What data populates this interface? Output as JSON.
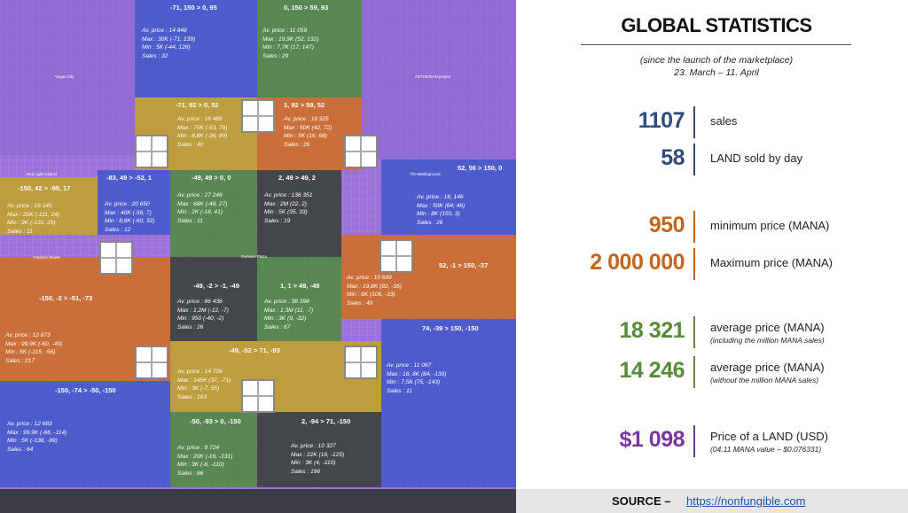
{
  "map": {
    "labels": [
      "Vegas City",
      "Red Light District",
      "Fashion Street",
      "Genesis Plaza",
      "AETHERIAN project",
      "The Battleground"
    ],
    "regions": [
      {
        "title": "-71, 150 > 0, 95",
        "stats": [
          "Av. price : 14 848",
          "Max : 30K (-71, 139)",
          "Min : 5K (-44, 126)",
          "Sales : 32"
        ]
      },
      {
        "title": "0, 150 > 59, 93",
        "stats": [
          "Av. price : 11 059",
          "Max : 19,9K (52, 132)",
          "Min : 7,7K (17, 147)",
          "Sales : 29"
        ]
      },
      {
        "title": "-71, 92 > 0, 52",
        "stats": [
          "Av. price : 16 486",
          "Max : 75K (-53, 79)",
          "Min : 8,8K (-36, 89)",
          "Sales : 40"
        ]
      },
      {
        "title": "1, 92 > 59, 52",
        "stats": [
          "Av. price : 18 325",
          "Max : 50K (42, 72)",
          "Min : 5K (16, 68)",
          "Sales : 26"
        ]
      },
      {
        "title": "-150, 42 > -95, 17",
        "stats": [
          "Av. price : 16 145",
          "Max : 20K (-111, 24)",
          "Min : 9K (-131, 29)",
          "Sales : 11"
        ]
      },
      {
        "title": "-83, 49 > -52, 1",
        "stats": [
          "Av. price : 20 650",
          "Max : 40K (-56, 7)",
          "Min : 8,8K (-60, 32)",
          "Sales : 12"
        ]
      },
      {
        "title": "-49, 49 > 0, 0",
        "stats": [
          "Av. price : 27 246",
          "Max : 68K (-48, 27)",
          "Min : 2K (-18, 41)",
          "Sales : 11"
        ]
      },
      {
        "title": "2, 49 > 49, 2",
        "stats": [
          "Av. price : 136 351",
          "Max : 2M (22, 2)",
          "Min : 5K (35, 33)",
          "Sales : 19"
        ]
      },
      {
        "title": "52, 56 > 150, 0",
        "stats": [
          "Av. price : 16, 146",
          "Max : 50K (64, 46)",
          "Min : 8K (150, 3)",
          "Sales : 26"
        ]
      },
      {
        "title": "-150, -2 > -51, -73",
        "stats": [
          "Av. price : 12 873",
          "Max : 99,9K (-60, -49)",
          "Min : 5K (-115, -56)",
          "Sales : 217"
        ]
      },
      {
        "title": "-49, -2 > -1, -49",
        "stats": [
          "Av. price : 86 436",
          "Max : 1,2M (-12, -7)",
          "Min : 950 (-40, -2)",
          "Sales : 26"
        ]
      },
      {
        "title": "1, 1 > 49, -49",
        "stats": [
          "Av. price : 38 398",
          "Max : 1,3M (11, -7)",
          "Min : 3K (9, -32)",
          "Sales : 67"
        ]
      },
      {
        "title": "52, -1 > 150, -37",
        "stats": [
          "Av. price : 10 699",
          "Max : 19,8K (82, -36)",
          "Min : 6K (106, -33)",
          "Sales : 49"
        ]
      },
      {
        "title": "-49, -52 > 71, -93",
        "stats": [
          "Av. price : 14 706",
          "Max : 145K (37, -71)",
          "Min : 3K (-7, 55)",
          "Sales : 163"
        ]
      },
      {
        "title": "74, -39 > 150, -150",
        "stats": [
          "Av. price : 11 067",
          "Max : 16, 8K (84, -139)",
          "Min : 7,5K (75, -143)",
          "Sales : 11"
        ]
      },
      {
        "title": "-150, -74 > -50, -150",
        "stats": [
          "Av. price : 12 683",
          "Max : 99,9K (-86, -114)",
          "Min : 5K (-138, -99)",
          "Sales : 64"
        ]
      },
      {
        "title": "-50, -93 > 0, -150",
        "stats": [
          "Av. price : 9 724",
          "Max : 20K (-16, -131)",
          "Min : 3K (-8, -110)",
          "Sales : 86"
        ]
      },
      {
        "title": "2, -94 > 71, -150",
        "stats": [
          "Av. price : 10 327",
          "Max : 22K (16, -125)",
          "Min : 3K (4, -110)",
          "Sales : 196"
        ]
      }
    ]
  },
  "panel": {
    "title": "GLOBAL STATISTICS",
    "subtitle": "(since the launch of the marketplace)",
    "period": "23. March – 11. April",
    "stats": [
      {
        "value": "1107",
        "label": "sales"
      },
      {
        "value": "58",
        "label": "LAND sold by day"
      },
      {
        "value": "950",
        "label": "minimum price (MANA)"
      },
      {
        "value": "2 000 000",
        "label": "Maximum price (MANA)"
      },
      {
        "value": "18 321",
        "label": "average price (MANA)",
        "note": "(including the million MANA sales)"
      },
      {
        "value": "14 246",
        "label": "average price (MANA)",
        "note": "(without the million MANA sales)"
      },
      {
        "value": "$1 098",
        "label": "Price of a LAND (USD)",
        "note": "(04.11 MANA value – $0.076331)"
      }
    ],
    "source": {
      "label": "SOURCE –",
      "url": "https://nonfungible.com"
    }
  }
}
